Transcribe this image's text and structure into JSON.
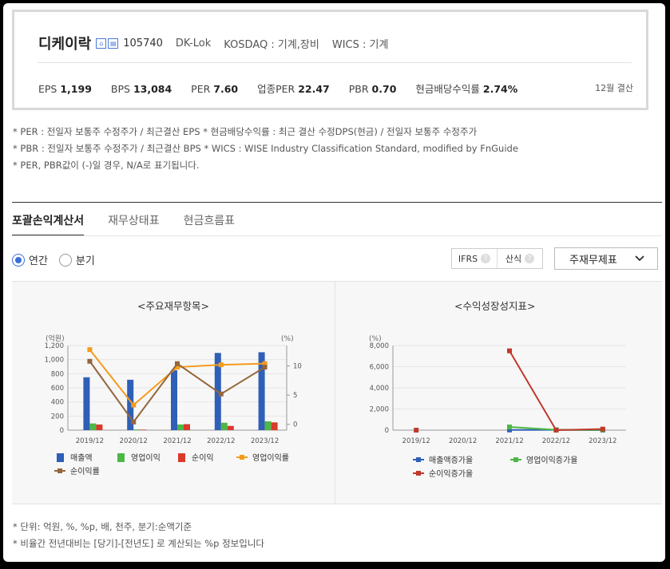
{
  "company": {
    "name": "디케이락",
    "code": "105740",
    "eng_name": "DK-Lok",
    "market": "KOSDAQ : 기계,장비",
    "wics": "WICS : 기계",
    "settlement": "12월 결산",
    "metrics": [
      {
        "label": "EPS",
        "value": "1,199"
      },
      {
        "label": "BPS",
        "value": "13,084"
      },
      {
        "label": "PER",
        "value": "7.60"
      },
      {
        "label": "업종PER",
        "value": "22.47"
      },
      {
        "label": "PBR",
        "value": "0.70"
      },
      {
        "label": "현금배당수익률",
        "value": "2.74%"
      }
    ]
  },
  "notes": [
    "* PER : 전일자 보통주 수정주가 / 최근결산 EPS * 현금배당수익률 : 최근 결산 수정DPS(현금) / 전일자 보통주 수정주가",
    "* PBR : 전일자 보통주 수정주가 / 최근결산 BPS * WICS : WISE Industry Classification Standard, modified by FnGuide",
    "* PER, PBR값이 (-)일 경우, N/A로 표기됩니다."
  ],
  "tabs": [
    "포괄손익계산서",
    "재무상태표",
    "현금흐름표"
  ],
  "period": {
    "annual": "연간",
    "quarter": "분기"
  },
  "controls": {
    "ifrs": "IFRS",
    "calc": "산식",
    "help": "?",
    "dropdown": "주재무제표"
  },
  "footer": [
    "* 단위: 억원, %, %p, 배, 천주, 분기:순액기준",
    "* 비율간 전년대비는 [당기]-[전년도] 로 계산되는 %p 정보입니다"
  ],
  "colors": {
    "revenue": "#2f5fb7",
    "op_income": "#4db845",
    "net_income": "#d93a2b",
    "op_margin": "#f59b1c",
    "net_margin": "#94663a",
    "rev_growth": "#2f5fb7",
    "op_growth": "#4db845",
    "net_growth": "#c0392b"
  },
  "chart_data": [
    {
      "type": "bar",
      "title": "<주요재무항목>",
      "ylabel": "(억원)",
      "y2label": "(%)",
      "categories": [
        "2019/12",
        "2020/12",
        "2021/12",
        "2022/12",
        "2023/12"
      ],
      "ylim": [
        0,
        1200
      ],
      "yticks": [
        0,
        200,
        400,
        600,
        800,
        1000,
        1200
      ],
      "ytick_labels": [
        "0",
        "200",
        "400",
        "600",
        "800",
        "1,000",
        "1,200"
      ],
      "y2lim": [
        -1,
        13.5
      ],
      "y2ticks": [
        0,
        5,
        10
      ],
      "series": [
        {
          "name": "매출액",
          "kind": "bar",
          "axis": "left",
          "values": [
            750,
            715,
            850,
            1095,
            1105
          ]
        },
        {
          "name": "영업이익",
          "kind": "bar",
          "axis": "left",
          "values": [
            95,
            10,
            80,
            105,
            125
          ]
        },
        {
          "name": "순이익",
          "kind": "bar",
          "axis": "left",
          "values": [
            80,
            8,
            85,
            60,
            110
          ]
        },
        {
          "name": "영업이익률",
          "kind": "line",
          "axis": "right",
          "values": [
            12.8,
            3.3,
            9.8,
            10.2,
            10.4
          ]
        },
        {
          "name": "순이익률",
          "kind": "line",
          "axis": "right",
          "values": [
            10.8,
            0.4,
            10.4,
            5.2,
            9.8
          ]
        }
      ],
      "legend_position": "bottom"
    },
    {
      "type": "line",
      "title": "<수익성장성지표>",
      "ylabel": "(%)",
      "categories": [
        "2019/12",
        "2020/12",
        "2021/12",
        "2022/12",
        "2023/12"
      ],
      "ylim": [
        0,
        8000
      ],
      "yticks": [
        0,
        2000,
        4000,
        6000,
        8000
      ],
      "ytick_labels": [
        "0",
        "2,000",
        "4,000",
        "6,000",
        "8,000"
      ],
      "series": [
        {
          "name": "매출액증가율",
          "values": [
            null,
            null,
            19,
            29,
            1
          ]
        },
        {
          "name": "영업이익증가율",
          "values": [
            null,
            null,
            300,
            31,
            19
          ]
        },
        {
          "name": "순이익증가율",
          "values": [
            null,
            null,
            7500,
            0,
            100
          ]
        }
      ],
      "extra_points": [
        {
          "series": "순이익증가율",
          "category": "2019/12",
          "value": 0
        }
      ],
      "legend_position": "bottom"
    }
  ]
}
